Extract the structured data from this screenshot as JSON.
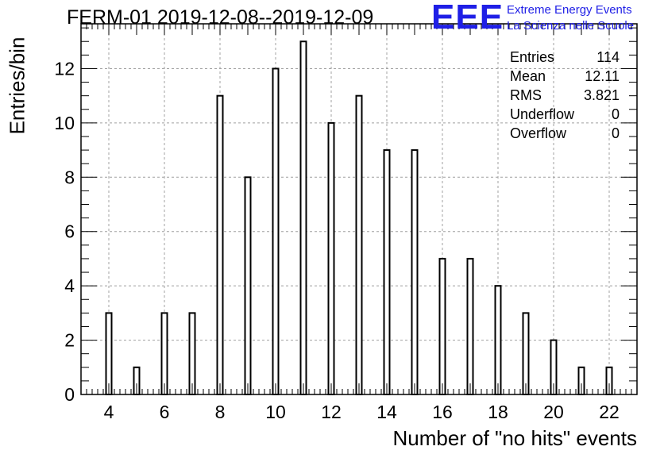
{
  "title": "FERM-01 2019-12-08--2019-12-09",
  "logo": {
    "mark": "EEE",
    "line1": "Extreme Energy Events",
    "line2": "La Scienza nelle Scuole"
  },
  "stats": [
    {
      "label": "Entries",
      "value": "114"
    },
    {
      "label": "Mean",
      "value": "12.11"
    },
    {
      "label": "RMS",
      "value": "3.821"
    },
    {
      "label": "Underflow",
      "value": "0"
    },
    {
      "label": "Overflow",
      "value": "0"
    }
  ],
  "colors": {
    "bar_stroke": "#000000",
    "grid": "#a0a0a0",
    "logo_blue": "#1f1fe6"
  },
  "chart_data": {
    "type": "bar",
    "title": "FERM-01 2019-12-08--2019-12-09",
    "xlabel": "Number of \"no hits\" events",
    "ylabel": "Entries/bin",
    "xlim": [
      3,
      23
    ],
    "ylim": [
      0,
      13.65
    ],
    "grid": true,
    "x_ticks": [
      4,
      6,
      8,
      10,
      12,
      14,
      16,
      18,
      20,
      22
    ],
    "y_ticks": [
      0,
      2,
      4,
      6,
      8,
      10,
      12
    ],
    "categories": [
      4,
      5,
      6,
      7,
      8,
      9,
      10,
      11,
      12,
      13,
      14,
      15,
      16,
      17,
      18,
      19,
      20,
      21,
      22
    ],
    "values": [
      3,
      1,
      3,
      3,
      11,
      8,
      12,
      13,
      10,
      11,
      9,
      9,
      5,
      5,
      4,
      3,
      2,
      1,
      1
    ]
  }
}
